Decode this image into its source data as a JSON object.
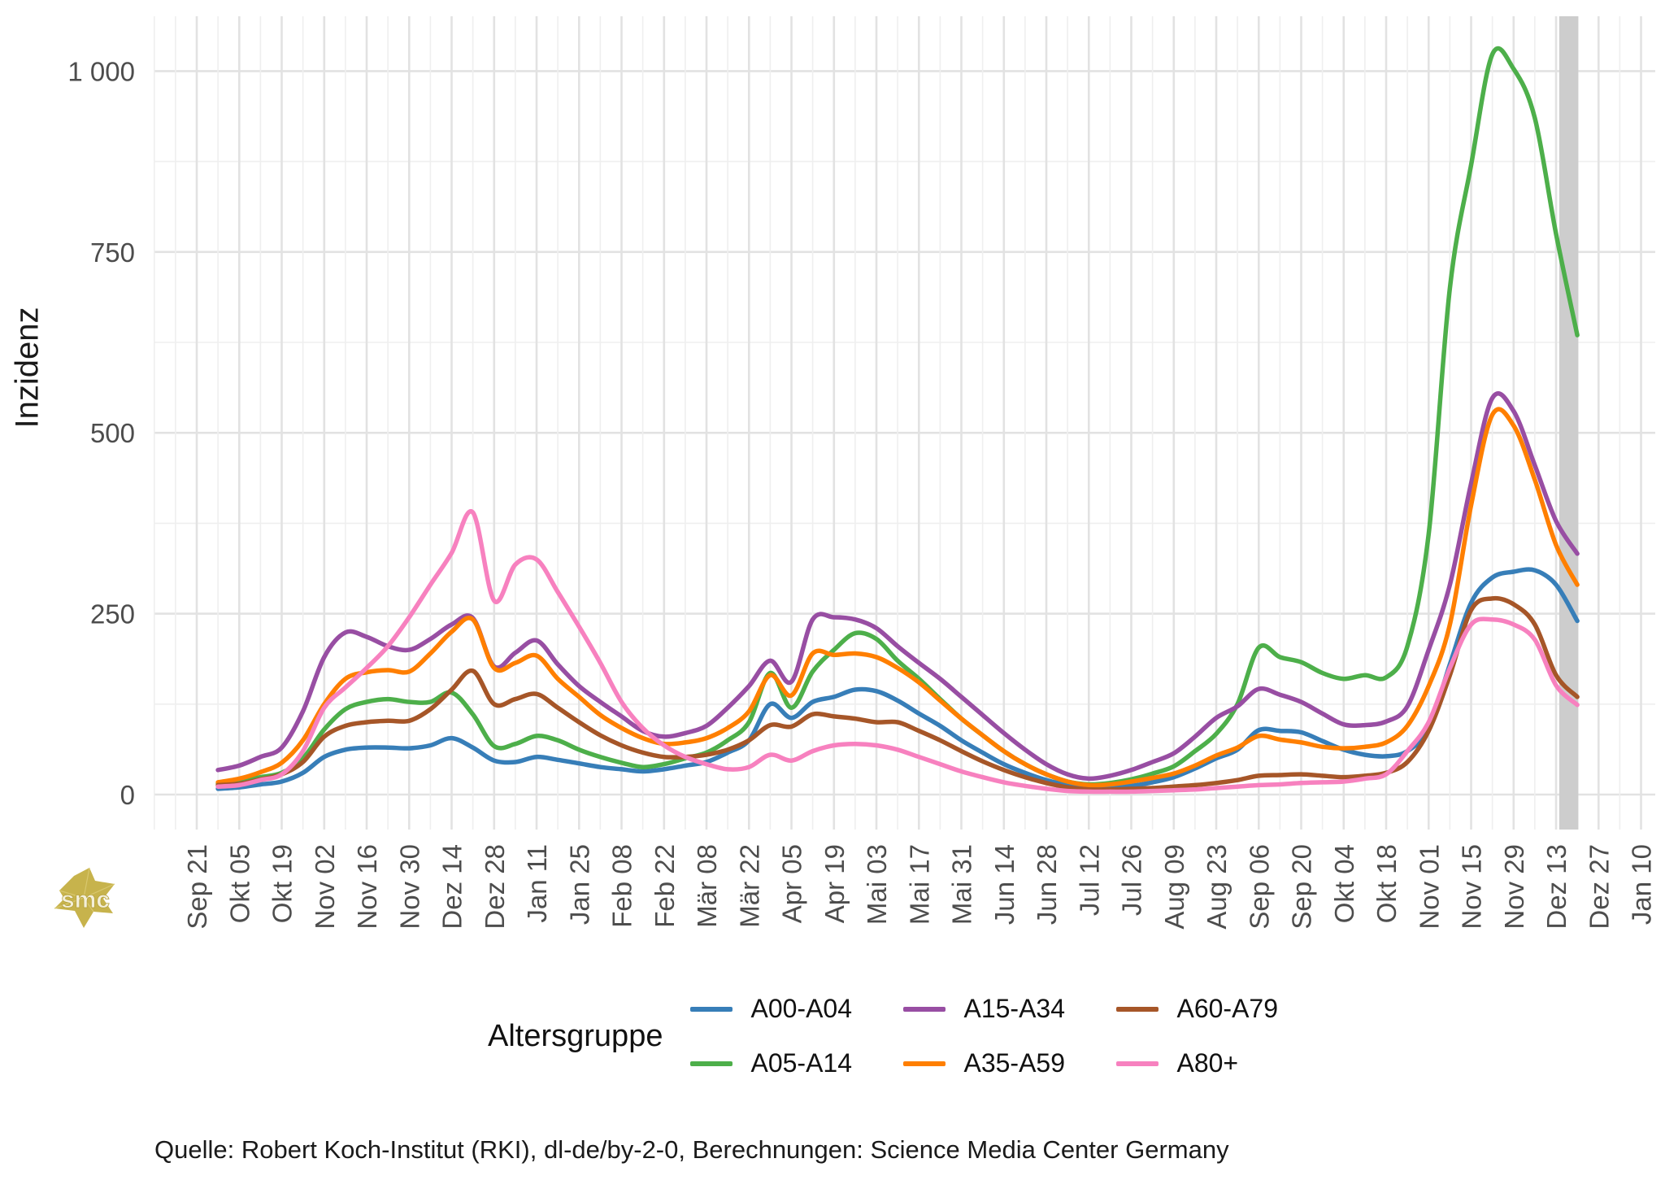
{
  "page": {
    "background": "#ffffff"
  },
  "caption": "Quelle: Robert Koch-Institut (RKI), dl-de/by-2-0, Berechnungen: Science Media Center Germany",
  "watermark": {
    "text": "smc",
    "color": "#c7b34c"
  },
  "chart_data": {
    "type": "line",
    "title": "",
    "xlabel": "",
    "ylabel": "Inzidenz",
    "legend_title": "Altersgruppe",
    "legend_position": "bottom",
    "grid": "on",
    "ylim": [
      0,
      1075
    ],
    "y_tick_values": [
      0,
      250,
      500,
      750,
      1000
    ],
    "y_tick_labels": [
      "0",
      "250",
      "500",
      "750",
      "1 000"
    ],
    "x_tick_labels": [
      "Sep 21",
      "Okt 05",
      "Okt 19",
      "Nov 02",
      "Nov 16",
      "Nov 30",
      "Dez 14",
      "Dez 28",
      "Jan 11",
      "Jan 25",
      "Feb 08",
      "Feb 22",
      "Mär 08",
      "Mär 22",
      "Apr 05",
      "Apr 19",
      "Mai 03",
      "Mai 17",
      "Mai 31",
      "Jun 14",
      "Jun 28",
      "Jul 12",
      "Jul 26",
      "Aug 09",
      "Aug 23",
      "Sep 06",
      "Sep 20",
      "Okt 04",
      "Okt 18",
      "Nov 01",
      "Nov 15",
      "Nov 29",
      "Dez 13",
      "Dez 27",
      "Jan 10"
    ],
    "x": [
      "Sep 28",
      "Okt 05",
      "Okt 12",
      "Okt 19",
      "Okt 26",
      "Nov 02",
      "Nov 09",
      "Nov 16",
      "Nov 23",
      "Nov 30",
      "Dez 07",
      "Dez 14",
      "Dez 21",
      "Dez 28",
      "Jan 04",
      "Jan 11",
      "Jan 18",
      "Jan 25",
      "Feb 01",
      "Feb 08",
      "Feb 15",
      "Feb 22",
      "Mär 01",
      "Mär 08",
      "Mär 15",
      "Mär 22",
      "Mär 29",
      "Apr 05",
      "Apr 12",
      "Apr 19",
      "Apr 26",
      "Mai 03",
      "Mai 10",
      "Mai 17",
      "Mai 24",
      "Mai 31",
      "Jun 07",
      "Jun 14",
      "Jun 21",
      "Jun 28",
      "Jul 05",
      "Jul 12",
      "Jul 19",
      "Jul 26",
      "Aug 02",
      "Aug 09",
      "Aug 16",
      "Aug 23",
      "Aug 30",
      "Sep 06",
      "Sep 13",
      "Sep 20",
      "Sep 27",
      "Okt 04",
      "Okt 11",
      "Okt 18",
      "Okt 25",
      "Nov 01",
      "Nov 08",
      "Nov 15",
      "Nov 22",
      "Nov 29",
      "Dez 06",
      "Dez 13",
      "Dez 19"
    ],
    "series": [
      {
        "name": "A00-A04",
        "color": "#377eb8",
        "values": [
          8,
          10,
          14,
          18,
          30,
          52,
          62,
          65,
          65,
          64,
          68,
          78,
          65,
          47,
          45,
          52,
          48,
          43,
          38,
          35,
          32,
          35,
          40,
          45,
          58,
          75,
          125,
          106,
          128,
          135,
          145,
          143,
          130,
          112,
          95,
          75,
          58,
          42,
          30,
          20,
          13,
          10,
          10,
          12,
          17,
          24,
          36,
          50,
          62,
          89,
          88,
          86,
          74,
          62,
          55,
          53,
          60,
          92,
          180,
          265,
          300,
          308,
          310,
          290,
          240
        ]
      },
      {
        "name": "A05-A14",
        "color": "#4daf4a",
        "values": [
          15,
          18,
          24,
          30,
          50,
          90,
          118,
          128,
          132,
          128,
          128,
          141,
          111,
          67,
          70,
          81,
          75,
          62,
          52,
          44,
          38,
          42,
          50,
          58,
          75,
          100,
          168,
          120,
          170,
          200,
          223,
          215,
          185,
          160,
          132,
          105,
          82,
          60,
          42,
          28,
          18,
          14,
          16,
          21,
          29,
          39,
          60,
          84,
          125,
          203,
          190,
          183,
          168,
          160,
          165,
          162,
          205,
          360,
          700,
          870,
          1023,
          1003,
          935,
          775,
          635
        ]
      },
      {
        "name": "A15-A34",
        "color": "#984ea3",
        "values": [
          34,
          40,
          52,
          65,
          115,
          190,
          224,
          218,
          205,
          200,
          215,
          235,
          244,
          177,
          196,
          213,
          180,
          150,
          128,
          108,
          88,
          80,
          85,
          95,
          120,
          150,
          185,
          156,
          242,
          245,
          242,
          230,
          205,
          182,
          160,
          135,
          110,
          85,
          62,
          42,
          28,
          22,
          26,
          34,
          45,
          57,
          80,
          106,
          122,
          146,
          138,
          128,
          112,
          97,
          96,
          101,
          122,
          200,
          290,
          430,
          548,
          530,
          455,
          378,
          333
        ]
      },
      {
        "name": "A35-A59",
        "color": "#ff7f00",
        "values": [
          17,
          22,
          31,
          44,
          75,
          125,
          160,
          169,
          172,
          170,
          195,
          225,
          242,
          175,
          182,
          192,
          160,
          135,
          110,
          92,
          78,
          70,
          72,
          78,
          92,
          115,
          165,
          137,
          195,
          193,
          195,
          190,
          175,
          155,
          130,
          105,
          82,
          60,
          42,
          28,
          18,
          13,
          14,
          18,
          23,
          29,
          40,
          54,
          65,
          81,
          76,
          72,
          66,
          64,
          66,
          72,
          95,
          150,
          235,
          400,
          525,
          510,
          435,
          345,
          290
        ]
      },
      {
        "name": "A60-A79",
        "color": "#a65628",
        "values": [
          13,
          15,
          21,
          28,
          45,
          80,
          95,
          100,
          102,
          102,
          118,
          145,
          171,
          125,
          132,
          139,
          120,
          100,
          82,
          68,
          58,
          52,
          52,
          55,
          62,
          75,
          96,
          94,
          111,
          108,
          105,
          100,
          100,
          88,
          75,
          60,
          46,
          34,
          24,
          16,
          10,
          7,
          7,
          8,
          9,
          11,
          13,
          16,
          20,
          26,
          27,
          28,
          26,
          24,
          26,
          30,
          45,
          88,
          165,
          255,
          271,
          263,
          235,
          165,
          135
        ]
      },
      {
        "name": "A80+",
        "color": "#f781bf",
        "values": [
          11,
          13,
          20,
          28,
          60,
          120,
          148,
          175,
          205,
          245,
          290,
          334,
          390,
          268,
          318,
          325,
          280,
          232,
          182,
          128,
          92,
          68,
          52,
          42,
          35,
          38,
          55,
          47,
          60,
          68,
          70,
          68,
          62,
          52,
          42,
          32,
          24,
          17,
          12,
          8,
          5,
          4,
          4,
          4,
          5,
          6,
          7,
          9,
          11,
          13,
          14,
          16,
          17,
          18,
          22,
          28,
          60,
          100,
          175,
          235,
          242,
          235,
          214,
          151,
          124
        ]
      }
    ],
    "highlight_band": {
      "from": "Dez 14",
      "to": "Dez 20",
      "color": "#cdcdcd"
    }
  }
}
